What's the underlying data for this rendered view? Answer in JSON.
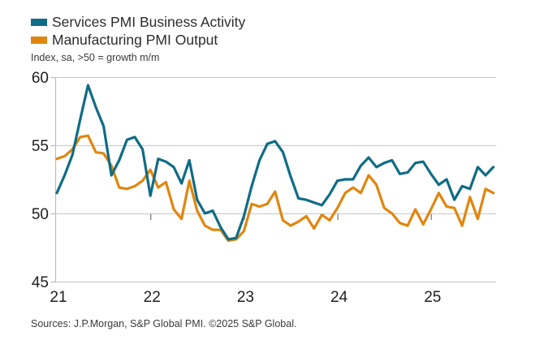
{
  "chart": {
    "legend_labels": [
      "Services PMI Business Activity",
      "Manufacturing PMI Output"
    ],
    "subtitle": "Index, sa, >50 = growth m/m",
    "source": "Sources: J.P.Morgan, S&P Global PMI. ©2025 S&P Global."
  },
  "chart_data": {
    "type": "line",
    "title": "",
    "subtitle": "Index, sa, >50 = growth m/m",
    "frequency": "monthly",
    "x_start": "2021-01",
    "x_end": "2025-09",
    "x_tick_labels": [
      "21",
      "22",
      "23",
      "24",
      "25"
    ],
    "ylim": [
      45,
      60
    ],
    "y_ticks": [
      60,
      55,
      50,
      45
    ],
    "reference_line": 50,
    "grid": "horizontal",
    "legend_position": "top-left",
    "series": [
      {
        "name": "Services PMI Business Activity",
        "color": "#0f6c86",
        "values": [
          51.5,
          52.8,
          54.3,
          56.9,
          59.4,
          57.8,
          56.4,
          52.8,
          53.9,
          55.4,
          55.6,
          54.7,
          51.3,
          54.0,
          53.8,
          53.4,
          52.2,
          53.9,
          51.0,
          50.0,
          50.2,
          49.0,
          48.1,
          48.2,
          49.8,
          52.0,
          53.9,
          55.1,
          55.3,
          54.5,
          52.7,
          51.1,
          51.0,
          50.8,
          50.6,
          51.4,
          52.4,
          52.5,
          52.5,
          53.5,
          54.1,
          53.4,
          53.7,
          53.9,
          52.9,
          53.0,
          53.7,
          53.8,
          52.9,
          52.1,
          52.5,
          51.0,
          52.0,
          51.8,
          53.4,
          52.8,
          53.4
        ]
      },
      {
        "name": "Manufacturing PMI Output",
        "color": "#e0860e",
        "values": [
          54.0,
          54.2,
          54.7,
          55.6,
          55.7,
          54.5,
          54.4,
          53.5,
          51.9,
          51.8,
          52.0,
          52.4,
          53.2,
          51.9,
          52.3,
          50.3,
          49.6,
          52.4,
          50.2,
          49.1,
          48.8,
          48.8,
          48.0,
          48.1,
          48.7,
          50.7,
          50.5,
          50.7,
          51.6,
          49.5,
          49.1,
          49.4,
          49.8,
          48.9,
          49.9,
          49.5,
          50.4,
          51.5,
          51.9,
          51.5,
          52.8,
          52.1,
          50.4,
          50.0,
          49.3,
          49.1,
          50.3,
          49.2,
          50.3,
          51.5,
          50.5,
          50.4,
          49.1,
          51.2,
          49.6,
          51.8,
          51.5
        ]
      }
    ]
  }
}
